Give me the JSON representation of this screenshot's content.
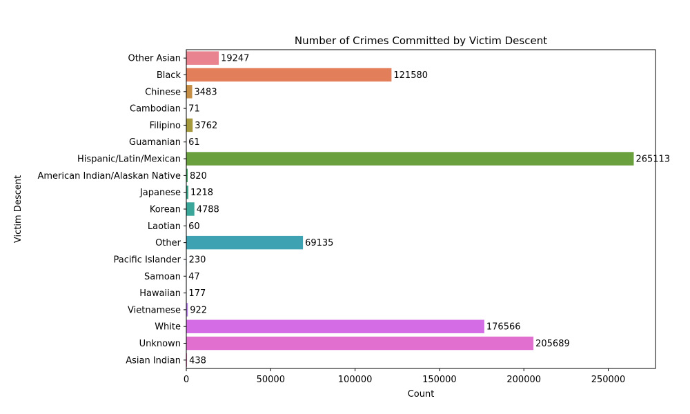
{
  "chart_data": {
    "type": "bar",
    "orientation": "horizontal",
    "title": "Number of Crimes Committed by Victim Descent",
    "xlabel": "Count",
    "ylabel": "Victim Descent",
    "xlim": [
      0,
      278000
    ],
    "xticks": [
      0,
      50000,
      100000,
      150000,
      200000,
      250000
    ],
    "grid": false,
    "legend": "none",
    "categories": [
      "Other Asian",
      "Black",
      "Chinese",
      "Cambodian",
      "Filipino",
      "Guamanian",
      "Hispanic/Latin/Mexican",
      "American Indian/Alaskan Native",
      "Japanese",
      "Korean",
      "Laotian",
      "Other",
      "Pacific Islander",
      "Samoan",
      "Hawaiian",
      "Vietnamese",
      "White",
      "Unknown",
      "Asian Indian"
    ],
    "values": [
      19247,
      121580,
      3483,
      71,
      3762,
      61,
      265113,
      820,
      1218,
      4788,
      60,
      69135,
      230,
      47,
      177,
      922,
      176566,
      205689,
      438
    ],
    "colors": [
      "#e8838f",
      "#e37e5b",
      "#c68f45",
      "#b6983d",
      "#a59a3e",
      "#8fa03d",
      "#6ba03f",
      "#43a364",
      "#3ca48a",
      "#3aa69a",
      "#3ba6a4",
      "#3fa2b3",
      "#46a0c0",
      "#5e98d9",
      "#8e8fe8",
      "#b57fe8",
      "#d46ce6",
      "#e06fd0",
      "#e873b4"
    ]
  }
}
